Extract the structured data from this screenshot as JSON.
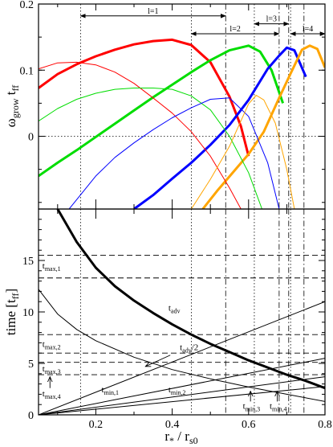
{
  "chart_data": [
    {
      "type": "line",
      "panel": "top",
      "ylabel_main": "ω",
      "ylabel_sub": "grow",
      "ylabel_tail": " t",
      "ylabel_tail_sub": "ff",
      "xlim": [
        0.05,
        0.8
      ],
      "ylim": [
        -0.11,
        0.2
      ],
      "yticks": [
        0.2,
        0.1,
        0
      ],
      "yticklabels": [
        "0.2",
        "0.1",
        "0"
      ],
      "colors": {
        "l1": "#ff0000",
        "l2": "#00dd00",
        "l3": "#0000ff",
        "l4": "#ffa500"
      },
      "range_arrows": [
        {
          "label": "l=1",
          "x1": 0.16,
          "x2": 0.54,
          "y": 0.182
        },
        {
          "label": "l=2",
          "x1": 0.45,
          "x2": 0.68,
          "y": 0.155
        },
        {
          "label": "l=3",
          "x1": 0.615,
          "x2": 0.705,
          "y": 0.17
        },
        {
          "label": "l=4",
          "x1": 0.71,
          "x2": 0.8,
          "y": 0.155
        }
      ],
      "vlines": {
        "dotted": [
          0.16,
          0.45,
          0.615,
          0.71
        ],
        "dashdot": [
          0.54,
          0.68,
          0.705,
          0.745
        ]
      },
      "series": [
        {
          "key": "l1_thick",
          "color": "l1",
          "thick": true,
          "x": [
            0.05,
            0.1,
            0.15,
            0.2,
            0.25,
            0.3,
            0.35,
            0.4,
            0.45,
            0.5,
            0.55,
            0.58,
            0.6
          ],
          "y": [
            0.073,
            0.094,
            0.109,
            0.121,
            0.131,
            0.139,
            0.144,
            0.146,
            0.138,
            0.112,
            0.06,
            0.015,
            -0.03
          ]
        },
        {
          "key": "l2_thick",
          "color": "l2",
          "thick": true,
          "x": [
            0.05,
            0.1,
            0.15,
            0.2,
            0.25,
            0.3,
            0.35,
            0.4,
            0.45,
            0.5,
            0.55,
            0.6,
            0.63,
            0.66,
            0.69
          ],
          "y": [
            -0.06,
            -0.04,
            -0.021,
            -0.001,
            0.019,
            0.039,
            0.059,
            0.078,
            0.097,
            0.115,
            0.13,
            0.137,
            0.128,
            0.1,
            0.05
          ]
        },
        {
          "key": "l3_thick",
          "color": "l3",
          "thick": true,
          "x": [
            0.3,
            0.35,
            0.4,
            0.45,
            0.5,
            0.55,
            0.6,
            0.65,
            0.68,
            0.7,
            0.72,
            0.75
          ],
          "y": [
            -0.11,
            -0.089,
            -0.064,
            -0.04,
            -0.013,
            0.017,
            0.055,
            0.102,
            0.122,
            0.134,
            0.13,
            0.09
          ]
        },
        {
          "key": "l4_thick",
          "color": "l4",
          "thick": true,
          "x": [
            0.48,
            0.52,
            0.56,
            0.6,
            0.64,
            0.68,
            0.71,
            0.74,
            0.76,
            0.78,
            0.8
          ],
          "y": [
            -0.11,
            -0.081,
            -0.054,
            -0.027,
            0.007,
            0.058,
            0.095,
            0.131,
            0.137,
            0.132,
            0.104
          ]
        },
        {
          "key": "l1_thin",
          "color": "l1",
          "thick": false,
          "x": [
            0.05,
            0.1,
            0.15,
            0.2,
            0.25,
            0.3,
            0.35,
            0.4,
            0.45,
            0.5,
            0.55,
            0.58
          ],
          "y": [
            0.102,
            0.111,
            0.112,
            0.108,
            0.097,
            0.08,
            0.058,
            0.035,
            0.007,
            -0.03,
            -0.078,
            -0.11
          ]
        },
        {
          "key": "l2_thin",
          "color": "l2",
          "thick": false,
          "x": [
            0.05,
            0.1,
            0.15,
            0.2,
            0.25,
            0.3,
            0.35,
            0.4,
            0.45,
            0.5,
            0.55,
            0.6,
            0.635
          ],
          "y": [
            0.023,
            0.042,
            0.056,
            0.065,
            0.071,
            0.073,
            0.073,
            0.071,
            0.061,
            0.04,
            0.0,
            -0.055,
            -0.11
          ]
        },
        {
          "key": "l3_thin",
          "color": "l3",
          "thick": false,
          "x": [
            0.13,
            0.2,
            0.25,
            0.3,
            0.35,
            0.4,
            0.45,
            0.5,
            0.55,
            0.6,
            0.65,
            0.68
          ],
          "y": [
            -0.11,
            -0.06,
            -0.032,
            -0.01,
            0.01,
            0.028,
            0.043,
            0.056,
            0.058,
            0.03,
            -0.04,
            -0.11
          ]
        },
        {
          "key": "l4_thin",
          "color": "l4",
          "thick": false,
          "x": [
            0.45,
            0.5,
            0.55,
            0.6,
            0.62,
            0.64,
            0.67,
            0.7,
            0.72
          ],
          "y": [
            -0.11,
            -0.065,
            -0.015,
            0.049,
            0.062,
            0.055,
            0.02,
            -0.05,
            -0.11
          ]
        }
      ]
    },
    {
      "type": "line",
      "panel": "bottom",
      "ylabel_main": "time [t",
      "ylabel_sub": "ff",
      "ylabel_tail": "]",
      "xlabel_main": "r",
      "xlabel_sub1": "*",
      "xlabel_mid": " / r",
      "xlabel_sub2": "s0",
      "xlim": [
        0.05,
        0.8
      ],
      "ylim": [
        0,
        20
      ],
      "yticks": [
        0,
        5,
        10,
        15
      ],
      "yticklabels": [
        "0",
        "5",
        "10",
        "15"
      ],
      "xticks": [
        0.2,
        0.4,
        0.6,
        0.8
      ],
      "xticklabels": [
        "0.2",
        "0.4",
        "0.6",
        "0.8"
      ],
      "hlines": [
        15.5,
        13.3,
        7.8,
        6.0,
        5.1,
        3.9
      ],
      "vlines": {
        "dotted": [
          0.16,
          0.45,
          0.615,
          0.71
        ],
        "dashdot": [
          0.54,
          0.68,
          0.705,
          0.745
        ]
      },
      "series": [
        {
          "key": "t_adv",
          "thick": true,
          "x": [
            0.1,
            0.15,
            0.2,
            0.25,
            0.3,
            0.35,
            0.4,
            0.45,
            0.5,
            0.55,
            0.6,
            0.65,
            0.7,
            0.75,
            0.8
          ],
          "y": [
            20.0,
            16.8,
            14.3,
            12.5,
            11.1,
            9.9,
            8.8,
            7.8,
            6.9,
            6.1,
            5.3,
            4.6,
            3.9,
            3.3,
            2.6
          ]
        },
        {
          "key": "t_adv_half",
          "thick": false,
          "x": [
            0.05,
            0.1,
            0.15,
            0.2,
            0.3,
            0.4,
            0.5,
            0.6,
            0.7,
            0.8
          ],
          "y": [
            12.2,
            9.8,
            8.3,
            7.2,
            5.6,
            4.4,
            3.5,
            2.7,
            2.0,
            1.3
          ]
        },
        {
          "key": "t_min1",
          "thick": false,
          "x": [
            0.05,
            0.8
          ],
          "y": [
            0.0,
            11.0
          ]
        },
        {
          "key": "t_min2",
          "thick": false,
          "x": [
            0.05,
            0.8
          ],
          "y": [
            0.0,
            5.5
          ]
        },
        {
          "key": "t_min3",
          "thick": false,
          "x": [
            0.05,
            0.8
          ],
          "y": [
            0.0,
            3.7
          ]
        },
        {
          "key": "t_min4",
          "thick": false,
          "x": [
            0.05,
            0.8
          ],
          "y": [
            0.0,
            2.75
          ]
        }
      ],
      "annotations": [
        {
          "key": "t_max1",
          "base": "t",
          "sub": "max,1",
          "x": 0.06,
          "y": 14.2
        },
        {
          "key": "t_max2",
          "base": "t",
          "sub": "max,2",
          "x": 0.06,
          "y": 6.6
        },
        {
          "key": "t_max3",
          "base": "t",
          "sub": "max,3",
          "x": 0.06,
          "y": 4.2
        },
        {
          "key": "t_max4",
          "base": "t",
          "sub": "max,4",
          "x": 0.06,
          "y": 1.8
        },
        {
          "key": "t_adv_lbl",
          "base": "t",
          "sub": "adv",
          "x": 0.39,
          "y": 10.1
        },
        {
          "key": "t_adv2_lbl",
          "base": "t",
          "sub": "adv",
          "tail": "/2",
          "x": 0.42,
          "y": 6.3
        },
        {
          "key": "t_min1_lbl",
          "base": "t",
          "sub": "min,1",
          "x": 0.215,
          "y": 2.2
        },
        {
          "key": "t_min2_lbl",
          "base": "t",
          "sub": "min,2",
          "x": 0.39,
          "y": 2.2
        },
        {
          "key": "t_min3_lbl",
          "base": "t",
          "sub": "min,3",
          "x": 0.585,
          "y": 0.6
        },
        {
          "key": "t_min4_lbl",
          "base": "t",
          "sub": "min,4",
          "x": 0.655,
          "y": 0.6
        }
      ]
    }
  ]
}
